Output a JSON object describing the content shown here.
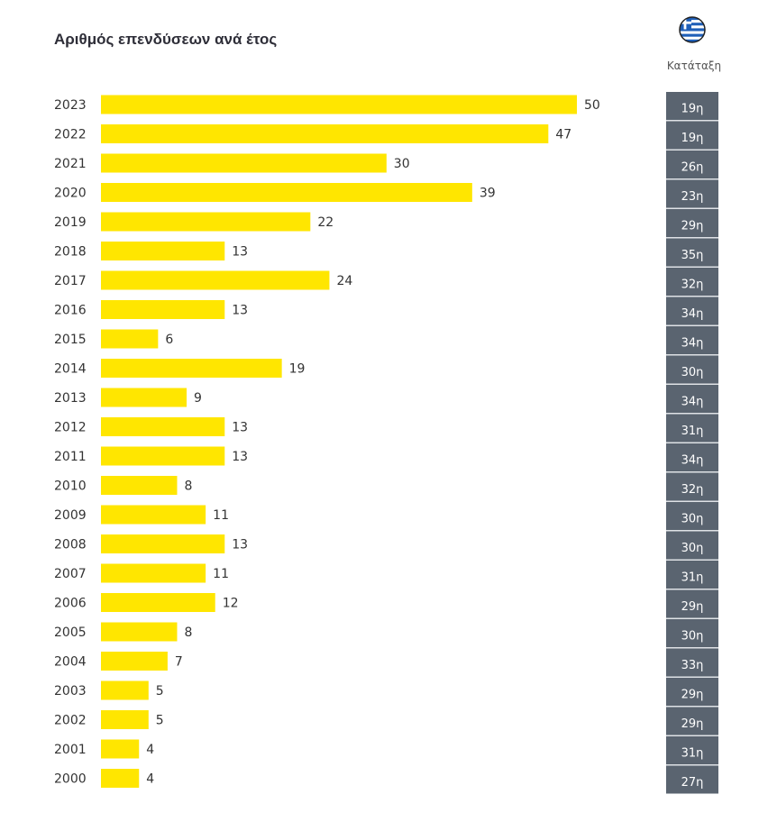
{
  "header": {
    "title": "Αριθμός επενδύσεων ανά έτος",
    "flag_icon": "greece-flag-icon",
    "rank_header": "Κατάταξη"
  },
  "colors": {
    "bar": "#ffe600",
    "rank_box": "#5a6470",
    "text": "#333333"
  },
  "chart_data": {
    "type": "bar",
    "orientation": "horizontal",
    "title": "Αριθμός επενδύσεων ανά έτος",
    "categories": [
      "2023",
      "2022",
      "2021",
      "2020",
      "2019",
      "2018",
      "2017",
      "2016",
      "2015",
      "2014",
      "2013",
      "2012",
      "2011",
      "2010",
      "2009",
      "2008",
      "2007",
      "2006",
      "2005",
      "2004",
      "2003",
      "2002",
      "2001",
      "2000"
    ],
    "values": [
      50,
      47,
      30,
      39,
      22,
      13,
      24,
      13,
      6,
      19,
      9,
      13,
      13,
      8,
      11,
      13,
      11,
      12,
      8,
      7,
      5,
      5,
      4,
      4
    ],
    "ranks": [
      "19η",
      "19η",
      "26η",
      "23η",
      "29η",
      "35η",
      "32η",
      "34η",
      "34η",
      "30η",
      "34η",
      "31η",
      "34η",
      "32η",
      "30η",
      "30η",
      "31η",
      "29η",
      "30η",
      "33η",
      "29η",
      "29η",
      "31η",
      "27η"
    ],
    "xlim": [
      0,
      50
    ],
    "grid": false,
    "legend": "none"
  }
}
